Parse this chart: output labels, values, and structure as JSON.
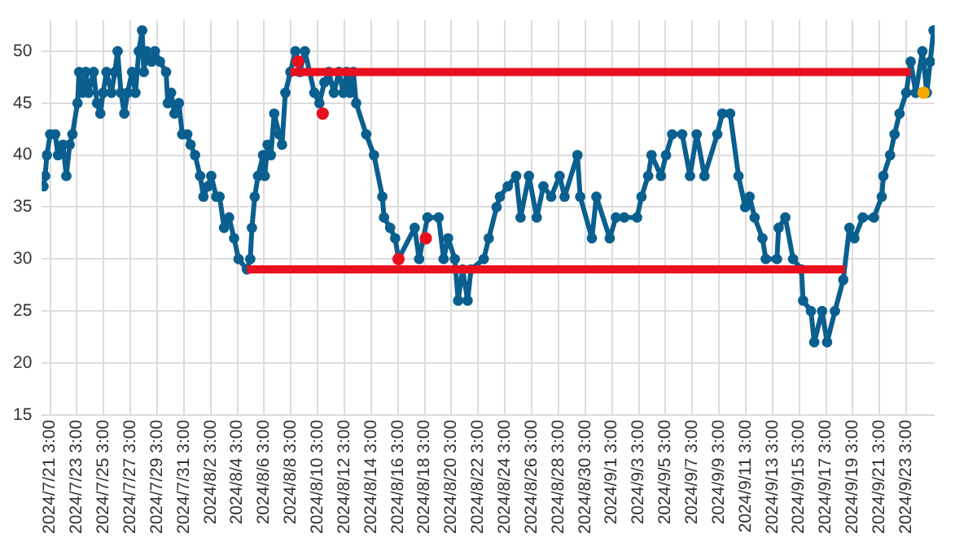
{
  "chart_data": {
    "type": "line",
    "marker": "circle",
    "grid": true,
    "legend": false,
    "xlim": [
      "2024-07-20T12:00",
      "2024-09-25T06:00"
    ],
    "ylim": [
      15,
      53
    ],
    "yticks": [
      15,
      20,
      25,
      30,
      35,
      40,
      45,
      50
    ],
    "xticks": [
      {
        "value": "2024-07-21T03:00",
        "label": "2024/7/21 3:00"
      },
      {
        "value": "2024-07-23T03:00",
        "label": "2024/7/23 3:00"
      },
      {
        "value": "2024-07-25T03:00",
        "label": "2024/7/25 3:00"
      },
      {
        "value": "2024-07-27T03:00",
        "label": "2024/7/27 3:00"
      },
      {
        "value": "2024-07-29T03:00",
        "label": "2024/7/29 3:00"
      },
      {
        "value": "2024-07-31T03:00",
        "label": "2024/7/31 3:00"
      },
      {
        "value": "2024-08-02T03:00",
        "label": "2024/8/2 3:00"
      },
      {
        "value": "2024-08-04T03:00",
        "label": "2024/8/4 3:00"
      },
      {
        "value": "2024-08-06T03:00",
        "label": "2024/8/6 3:00"
      },
      {
        "value": "2024-08-08T03:00",
        "label": "2024/8/8 3:00"
      },
      {
        "value": "2024-08-10T03:00",
        "label": "2024/8/10 3:00"
      },
      {
        "value": "2024-08-12T03:00",
        "label": "2024/8/12 3:00"
      },
      {
        "value": "2024-08-14T03:00",
        "label": "2024/8/14 3:00"
      },
      {
        "value": "2024-08-16T03:00",
        "label": "2024/8/16 3:00"
      },
      {
        "value": "2024-08-18T03:00",
        "label": "2024/8/18 3:00"
      },
      {
        "value": "2024-08-20T03:00",
        "label": "2024/8/20 3:00"
      },
      {
        "value": "2024-08-22T03:00",
        "label": "2024/8/22 3:00"
      },
      {
        "value": "2024-08-24T03:00",
        "label": "2024/8/24 3:00"
      },
      {
        "value": "2024-08-26T03:00",
        "label": "2024/8/26 3:00"
      },
      {
        "value": "2024-08-28T03:00",
        "label": "2024/8/28 3:00"
      },
      {
        "value": "2024-08-30T03:00",
        "label": "2024/8/30 3:00"
      },
      {
        "value": "2024-09-01T03:00",
        "label": "2024/9/1 3:00"
      },
      {
        "value": "2024-09-03T03:00",
        "label": "2024/9/3 3:00"
      },
      {
        "value": "2024-09-05T03:00",
        "label": "2024/9/5 3:00"
      },
      {
        "value": "2024-09-07T03:00",
        "label": "2024/9/7 3:00"
      },
      {
        "value": "2024-09-09T03:00",
        "label": "2024/9/9 3:00"
      },
      {
        "value": "2024-09-11T03:00",
        "label": "2024/9/11 3:00"
      },
      {
        "value": "2024-09-13T03:00",
        "label": "2024/9/13 3:00"
      },
      {
        "value": "2024-09-15T03:00",
        "label": "2024/9/15 3:00"
      },
      {
        "value": "2024-09-17T03:00",
        "label": "2024/9/17 3:00"
      },
      {
        "value": "2024-09-19T03:00",
        "label": "2024/9/19 3:00"
      },
      {
        "value": "2024-09-21T03:00",
        "label": "2024/9/21 3:00"
      },
      {
        "value": "2024-09-23T03:00",
        "label": "2024/9/23 3:00"
      }
    ],
    "series": [
      {
        "color": "#0a5f8f",
        "x": [
          "2024-07-20T15:00",
          "2024-07-20T18:00",
          "2024-07-20T21:00",
          "2024-07-21T03:00",
          "2024-07-21T12:00",
          "2024-07-21T17:00",
          "2024-07-22T02:00",
          "2024-07-22T08:00",
          "2024-07-22T14:00",
          "2024-07-22T19:00",
          "2024-07-23T04:00",
          "2024-07-23T07:00",
          "2024-07-23T13:00",
          "2024-07-23T19:00",
          "2024-07-24T00:00",
          "2024-07-24T09:00",
          "2024-07-24T15:00",
          "2024-07-24T21:00",
          "2024-07-25T02:00",
          "2024-07-25T08:00",
          "2024-07-25T17:00",
          "2024-07-25T23:00",
          "2024-07-26T04:00",
          "2024-07-26T10:00",
          "2024-07-26T16:00",
          "2024-07-26T22:00",
          "2024-07-27T06:00",
          "2024-07-27T12:00",
          "2024-07-27T18:00",
          "2024-07-28T00:00",
          "2024-07-28T03:00",
          "2024-07-28T08:00",
          "2024-07-28T17:00",
          "2024-07-28T23:00",
          "2024-07-29T08:00",
          "2024-07-29T19:00",
          "2024-07-29T22:00",
          "2024-07-30T04:00",
          "2024-07-30T10:00",
          "2024-07-30T18:00",
          "2024-07-31T00:00",
          "2024-07-31T09:00",
          "2024-07-31T15:00",
          "2024-07-31T23:00",
          "2024-08-01T08:00",
          "2024-08-01T14:00",
          "2024-08-01T22:00",
          "2024-08-02T04:00",
          "2024-08-02T13:00",
          "2024-08-02T19:00",
          "2024-08-03T03:00",
          "2024-08-03T12:00",
          "2024-08-03T21:00",
          "2024-08-04T05:00",
          "2024-08-04T20:00",
          "2024-08-05T02:00",
          "2024-08-05T05:00",
          "2024-08-05T10:00",
          "2024-08-05T16:00",
          "2024-08-06T01:00",
          "2024-08-06T04:00",
          "2024-08-06T09:00",
          "2024-08-06T15:00",
          "2024-08-06T21:00",
          "2024-08-07T06:00",
          "2024-08-07T11:00",
          "2024-08-07T17:00",
          "2024-08-08T02:00",
          "2024-08-08T11:00",
          "2024-08-08T19:00",
          "2024-08-09T04:00",
          "2024-08-09T21:00",
          "2024-08-10T06:00",
          "2024-08-10T15:00",
          "2024-08-10T23:00",
          "2024-08-11T08:00",
          "2024-08-11T17:00",
          "2024-08-12T01:00",
          "2024-08-12T07:00",
          "2024-08-12T13:00",
          "2024-08-12T19:00",
          "2024-08-13T00:00",
          "2024-08-13T18:00",
          "2024-08-14T08:00",
          "2024-08-14T23:00",
          "2024-08-15T02:00",
          "2024-08-15T13:00",
          "2024-08-15T22:00",
          "2024-08-16T04:00",
          "2024-08-17T09:00",
          "2024-08-17T17:00",
          "2024-08-18T08:00",
          "2024-08-19T04:00",
          "2024-08-19T13:00",
          "2024-08-19T21:00",
          "2024-08-20T09:00",
          "2024-08-20T15:00",
          "2024-08-20T23:00",
          "2024-08-21T08:00",
          "2024-08-21T14:00",
          "2024-08-22T13:00",
          "2024-08-22T22:00",
          "2024-08-23T12:00",
          "2024-08-23T18:00",
          "2024-08-24T08:00",
          "2024-08-24T23:00",
          "2024-08-25T07:00",
          "2024-08-25T22:00",
          "2024-08-26T12:00",
          "2024-08-27T00:00",
          "2024-08-27T14:00",
          "2024-08-28T05:00",
          "2024-08-28T14:00",
          "2024-08-29T13:00",
          "2024-08-29T18:00",
          "2024-08-30T15:00",
          "2024-08-30T23:00",
          "2024-08-31T23:00",
          "2024-09-01T10:00",
          "2024-09-02T01:00",
          "2024-09-03T00:00",
          "2024-09-03T08:00",
          "2024-09-03T20:00",
          "2024-09-04T02:00",
          "2024-09-04T19:00",
          "2024-09-05T04:00",
          "2024-09-05T15:00",
          "2024-09-06T09:00",
          "2024-09-06T23:00",
          "2024-09-07T11:00",
          "2024-09-08T01:00",
          "2024-09-09T00:00",
          "2024-09-09T09:00",
          "2024-09-09T23:00",
          "2024-09-10T14:00",
          "2024-09-11T02:00",
          "2024-09-11T10:00",
          "2024-09-11T19:00",
          "2024-09-12T09:00",
          "2024-09-12T15:00",
          "2024-09-13T11:00",
          "2024-09-13T14:00",
          "2024-09-14T02:00",
          "2024-09-14T16:00",
          "2024-09-15T07:00",
          "2024-09-15T10:00",
          "2024-09-16T00:00",
          "2024-09-16T06:00",
          "2024-09-16T20:00",
          "2024-09-17T05:00",
          "2024-09-17T19:00",
          "2024-09-18T10:00",
          "2024-09-18T21:00",
          "2024-09-19T06:00",
          "2024-09-19T21:00",
          "2024-09-20T17:00",
          "2024-09-21T07:00",
          "2024-09-21T10:00",
          "2024-09-21T22:00",
          "2024-09-22T06:00",
          "2024-09-22T15:00",
          "2024-09-23T03:00",
          "2024-09-23T11:00",
          "2024-09-23T20:00",
          "2024-09-24T08:00",
          "2024-09-24T16:00",
          "2024-09-24T22:00",
          "2024-09-25T04:00"
        ],
        "values": [
          37,
          38,
          40,
          42,
          42,
          40,
          41,
          38,
          41,
          42,
          45,
          48,
          46,
          48,
          46,
          48,
          45,
          44,
          46,
          48,
          46,
          48,
          50,
          46,
          44,
          46,
          48,
          46,
          50,
          52,
          48,
          50,
          49,
          50,
          49,
          48,
          45,
          46,
          44,
          45,
          42,
          42,
          41,
          40,
          38,
          36,
          37,
          38,
          36,
          36,
          33,
          34,
          32,
          30,
          29,
          30,
          33,
          36,
          38,
          40,
          38,
          41,
          40,
          44,
          42,
          41,
          46,
          48,
          50,
          48,
          50,
          46,
          45,
          47,
          48,
          46,
          48,
          46,
          48,
          46,
          48,
          45,
          42,
          40,
          36,
          34,
          33,
          32,
          30,
          33,
          30,
          34,
          34,
          30,
          32,
          30,
          26,
          29,
          26,
          29,
          30,
          32,
          35,
          36,
          37,
          38,
          34,
          38,
          34,
          37,
          36,
          38,
          36,
          40,
          36,
          32,
          36,
          32,
          34,
          34,
          34,
          36,
          38,
          40,
          38,
          40,
          42,
          42,
          38,
          42,
          38,
          42,
          44,
          44,
          38,
          35,
          36,
          34,
          32,
          30,
          30,
          33,
          34,
          30,
          29,
          26,
          25,
          22,
          25,
          22,
          25,
          28,
          33,
          32,
          34,
          34,
          36,
          38,
          40,
          42,
          44,
          46,
          49,
          46,
          50,
          46,
          49,
          52
        ]
      },
      {
        "type": "line",
        "marker": "none",
        "color": "#e8101f",
        "x": [
          "2024-08-08T02:00",
          "2024-09-23T11:00"
        ],
        "values": [
          48,
          48
        ]
      },
      {
        "type": "line",
        "marker": "none",
        "color": "#e8101f",
        "x": [
          "2024-08-04T20:00",
          "2024-09-18T13:00"
        ],
        "values": [
          29,
          29
        ]
      },
      {
        "type": "scatter",
        "color": "#e8101f",
        "x": [
          "2024-08-08T16:00",
          "2024-08-10T12:00",
          "2024-08-16T04:00",
          "2024-08-18T05:00"
        ],
        "values": [
          49,
          44,
          30,
          32
        ]
      },
      {
        "type": "scatter",
        "color": "#f5a800",
        "x": [
          "2024-09-24T10:00"
        ],
        "values": [
          46
        ]
      }
    ]
  }
}
